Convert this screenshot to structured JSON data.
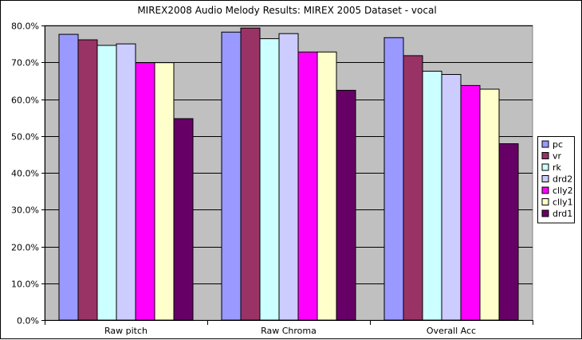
{
  "chart_data": {
    "type": "bar",
    "title": "MIREX2008 Audio Melody Results: MIREX 2005 Dataset - vocal",
    "xlabel": "",
    "ylabel": "",
    "categories": [
      "Raw pitch",
      "Raw Chroma",
      "Overall Acc"
    ],
    "ylim": [
      0,
      80
    ],
    "yticks": [
      "0.0%",
      "10.0%",
      "20.0%",
      "30.0%",
      "40.0%",
      "50.0%",
      "60.0%",
      "70.0%",
      "80.0%"
    ],
    "grid": true,
    "legend_position": "right",
    "plot_background": "#c0c0c0",
    "series": [
      {
        "name": "pc",
        "color": "#9999ff",
        "values": [
          77.6,
          78.2,
          76.7
        ]
      },
      {
        "name": "vr",
        "color": "#993366",
        "values": [
          76.1,
          79.3,
          71.8
        ]
      },
      {
        "name": "rk",
        "color": "#ccffff",
        "values": [
          74.6,
          76.4,
          67.6
        ]
      },
      {
        "name": "drd2",
        "color": "#ccccff",
        "values": [
          75.0,
          77.8,
          66.7
        ]
      },
      {
        "name": "clly2",
        "color": "#ff00ff",
        "values": [
          69.9,
          72.8,
          63.7
        ]
      },
      {
        "name": "clly1",
        "color": "#ffffcc",
        "values": [
          69.9,
          72.8,
          62.7
        ]
      },
      {
        "name": "drd1",
        "color": "#660066",
        "values": [
          54.7,
          62.4,
          47.9
        ]
      }
    ]
  }
}
